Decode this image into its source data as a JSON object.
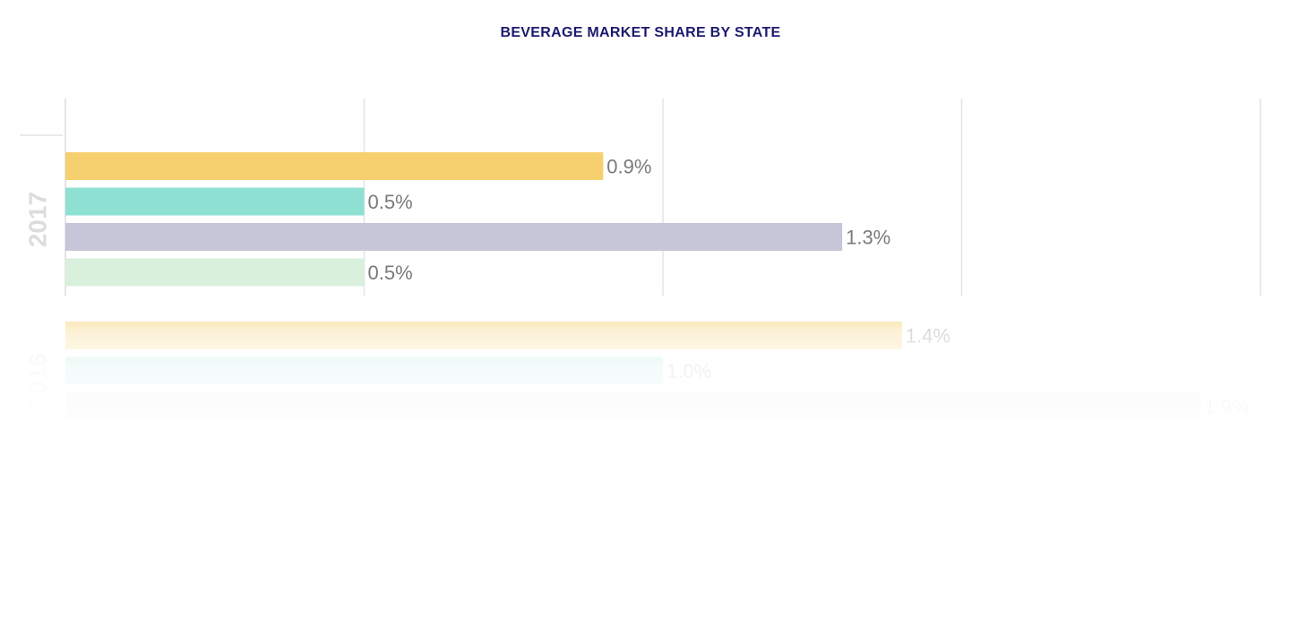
{
  "title": "BEVERAGE MARKET SHARE BY STATE",
  "colors": {
    "title": "#1b1a6e",
    "grid": "#e4e4e7",
    "group_label": "#dcdcdc",
    "value_label": "#7a7a7a"
  },
  "chart_data": {
    "type": "bar",
    "orientation": "horizontal",
    "title": "BEVERAGE MARKET SHARE BY STATE",
    "xlim": [
      0,
      2.0
    ],
    "grid": true,
    "unit": "%",
    "groups": [
      {
        "label": "2017",
        "values": [
          0.9,
          0.5,
          1.3,
          0.5
        ],
        "value_labels": [
          "0.9%",
          "0.5%",
          "1.3%",
          "0.5%"
        ],
        "colors": [
          "#f6d06f",
          "#8ee0d2",
          "#c6c6d8",
          "#d9f0dd"
        ]
      },
      {
        "label": "2016",
        "values": [
          1.4,
          1.0,
          1.9
        ],
        "value_labels": [
          "1.4%",
          "1.0%",
          "1.9%"
        ],
        "colors": [
          "#f6d06f",
          "#8ee0d2",
          "#c6c6d8"
        ]
      }
    ]
  }
}
